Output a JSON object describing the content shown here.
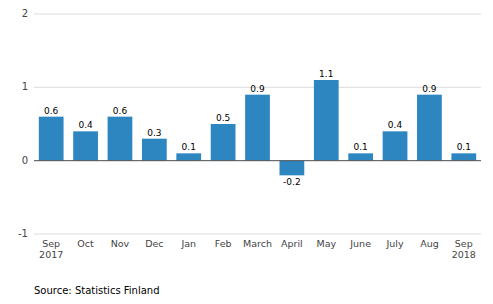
{
  "chart_data": {
    "type": "bar",
    "categories": [
      "Sep\n2017",
      "Oct",
      "Nov",
      "Dec",
      "Jan",
      "Feb",
      "March",
      "April",
      "May",
      "June",
      "July",
      "Aug",
      "Sep\n2018"
    ],
    "values": [
      0.6,
      0.4,
      0.6,
      0.3,
      0.1,
      0.5,
      0.9,
      -0.2,
      1.1,
      0.1,
      0.4,
      0.9,
      0.1
    ],
    "color": "#2e86c1",
    "ylim": [
      -1.0,
      2.0
    ],
    "yticks": [
      -1,
      0,
      1,
      2
    ],
    "grid": true,
    "data_labels": true,
    "annotations": [
      "Source: Statistics Finland"
    ]
  }
}
